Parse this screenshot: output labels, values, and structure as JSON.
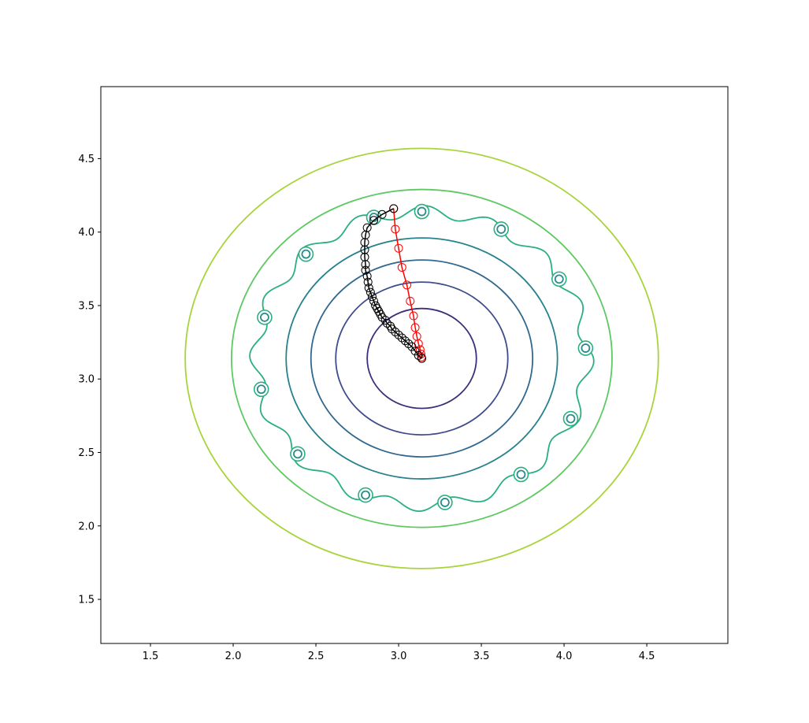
{
  "chart_data": {
    "type": "contour",
    "title": "",
    "xlabel": "",
    "ylabel": "",
    "xlim": [
      1.2,
      4.99
    ],
    "ylim": [
      1.2,
      4.99
    ],
    "x_ticks": [
      "1.5",
      "2.0",
      "2.5",
      "3.0",
      "3.5",
      "4.0",
      "4.5"
    ],
    "y_ticks": [
      "1.5",
      "2.0",
      "2.5",
      "3.0",
      "3.5",
      "4.0",
      "4.5"
    ],
    "center": [
      3.14,
      3.14
    ],
    "contour_levels": [
      {
        "rx": 0.33,
        "ry": 0.34,
        "color": "#3d2e7a"
      },
      {
        "rx": 0.52,
        "ry": 0.52,
        "color": "#3f4c8a"
      },
      {
        "rx": 0.67,
        "ry": 0.67,
        "color": "#31688e"
      },
      {
        "rx": 0.82,
        "ry": 0.82,
        "color": "#26828e"
      },
      {
        "rx": 1.15,
        "ry": 1.15,
        "color": "#5ec962"
      },
      {
        "rx": 1.43,
        "ry": 1.43,
        "color": "#a8d43b"
      }
    ],
    "wavy_ring": {
      "radius": 1.0,
      "bumps": 16,
      "amplitude": 0.04,
      "color": "#2ab07f"
    },
    "local_minima": [
      [
        3.14,
        4.14
      ],
      [
        3.62,
        4.02
      ],
      [
        3.97,
        3.68
      ],
      [
        4.13,
        3.21
      ],
      [
        4.04,
        2.73
      ],
      [
        3.74,
        2.35
      ],
      [
        3.28,
        2.16
      ],
      [
        2.8,
        2.21
      ],
      [
        2.39,
        2.49
      ],
      [
        2.17,
        2.93
      ],
      [
        2.19,
        3.42
      ],
      [
        2.44,
        3.85
      ],
      [
        2.85,
        4.1
      ]
    ],
    "local_minima_color": "#2a8a8e",
    "series": [
      {
        "color": "#ff0000",
        "marker": "open-circle",
        "x": [
          2.97,
          2.98,
          3.0,
          3.02,
          3.05,
          3.07,
          3.09,
          3.1,
          3.11,
          3.12,
          3.13,
          3.135,
          3.138,
          3.14
        ],
        "y": [
          4.16,
          4.02,
          3.89,
          3.76,
          3.64,
          3.53,
          3.43,
          3.35,
          3.29,
          3.24,
          3.2,
          3.17,
          3.15,
          3.14
        ]
      },
      {
        "color": "#000000",
        "marker": "open-circle",
        "x": [
          2.97,
          2.9,
          2.85,
          2.81,
          2.8,
          2.795,
          2.795,
          2.795,
          2.8,
          2.8,
          2.81,
          2.815,
          2.82,
          2.83,
          2.84,
          2.85,
          2.86,
          2.87,
          2.88,
          2.89,
          2.9,
          2.92,
          2.93,
          2.95,
          2.96,
          2.98,
          3.0,
          3.02,
          3.04,
          3.06,
          3.08,
          3.1,
          3.12,
          3.14
        ],
        "y": [
          4.16,
          4.12,
          4.08,
          4.03,
          3.98,
          3.93,
          3.88,
          3.83,
          3.78,
          3.74,
          3.7,
          3.66,
          3.62,
          3.59,
          3.56,
          3.53,
          3.5,
          3.48,
          3.46,
          3.44,
          3.42,
          3.4,
          3.38,
          3.36,
          3.34,
          3.32,
          3.3,
          3.28,
          3.26,
          3.24,
          3.22,
          3.19,
          3.16,
          3.14
        ]
      }
    ]
  }
}
